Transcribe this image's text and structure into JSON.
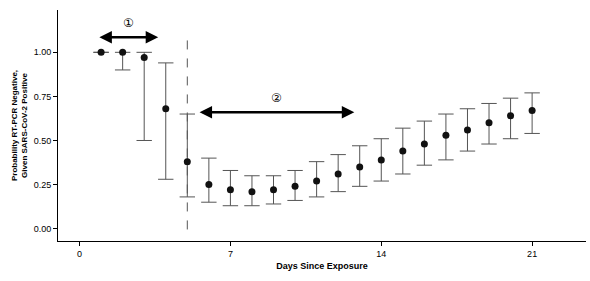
{
  "chart_data": {
    "type": "scatter",
    "x_label": "Days Since Exposure",
    "y_label": [
      "Probability RT-PCR Negative,",
      "Given SARS-CoV-2 Positive"
    ],
    "x": [
      1,
      2,
      3,
      4,
      5,
      6,
      7,
      8,
      9,
      10,
      11,
      12,
      13,
      14,
      15,
      16,
      17,
      18,
      19,
      20,
      21
    ],
    "values": [
      1.0,
      1.0,
      0.97,
      0.68,
      0.38,
      0.25,
      0.22,
      0.21,
      0.22,
      0.24,
      0.27,
      0.31,
      0.35,
      0.39,
      0.44,
      0.48,
      0.53,
      0.56,
      0.6,
      0.64,
      0.67
    ],
    "ci_lower": [
      1.0,
      0.9,
      0.5,
      0.28,
      0.18,
      0.15,
      0.13,
      0.13,
      0.14,
      0.16,
      0.18,
      0.21,
      0.24,
      0.27,
      0.31,
      0.36,
      0.39,
      0.44,
      0.48,
      0.51,
      0.54
    ],
    "ci_upper": [
      1.0,
      1.0,
      1.0,
      0.94,
      0.65,
      0.4,
      0.33,
      0.3,
      0.3,
      0.33,
      0.38,
      0.42,
      0.47,
      0.51,
      0.57,
      0.61,
      0.65,
      0.68,
      0.71,
      0.74,
      0.77
    ],
    "color": "#111111",
    "marker": "circle",
    "xlim": [
      -1,
      23.5
    ],
    "ylim": [
      -0.07,
      1.24
    ],
    "xticks": [
      0,
      7,
      14,
      21
    ],
    "yticks": [
      {
        "value": 0,
        "label": "0.00"
      },
      {
        "value": 0.25,
        "label": "0.25"
      },
      {
        "value": 0.5,
        "label": "0.50"
      },
      {
        "value": 0.75,
        "label": "0.75"
      },
      {
        "value": 1,
        "label": "1.00"
      }
    ],
    "grid": false,
    "annotations": [
      {
        "text": "①",
        "x": [
          0.85,
          3.65
        ],
        "y": 1.085
      },
      {
        "text": "②",
        "x": [
          5.5,
          12.75
        ],
        "y": 0.66
      }
    ],
    "vline": {
      "x": 5,
      "line_style": "dashed"
    }
  }
}
